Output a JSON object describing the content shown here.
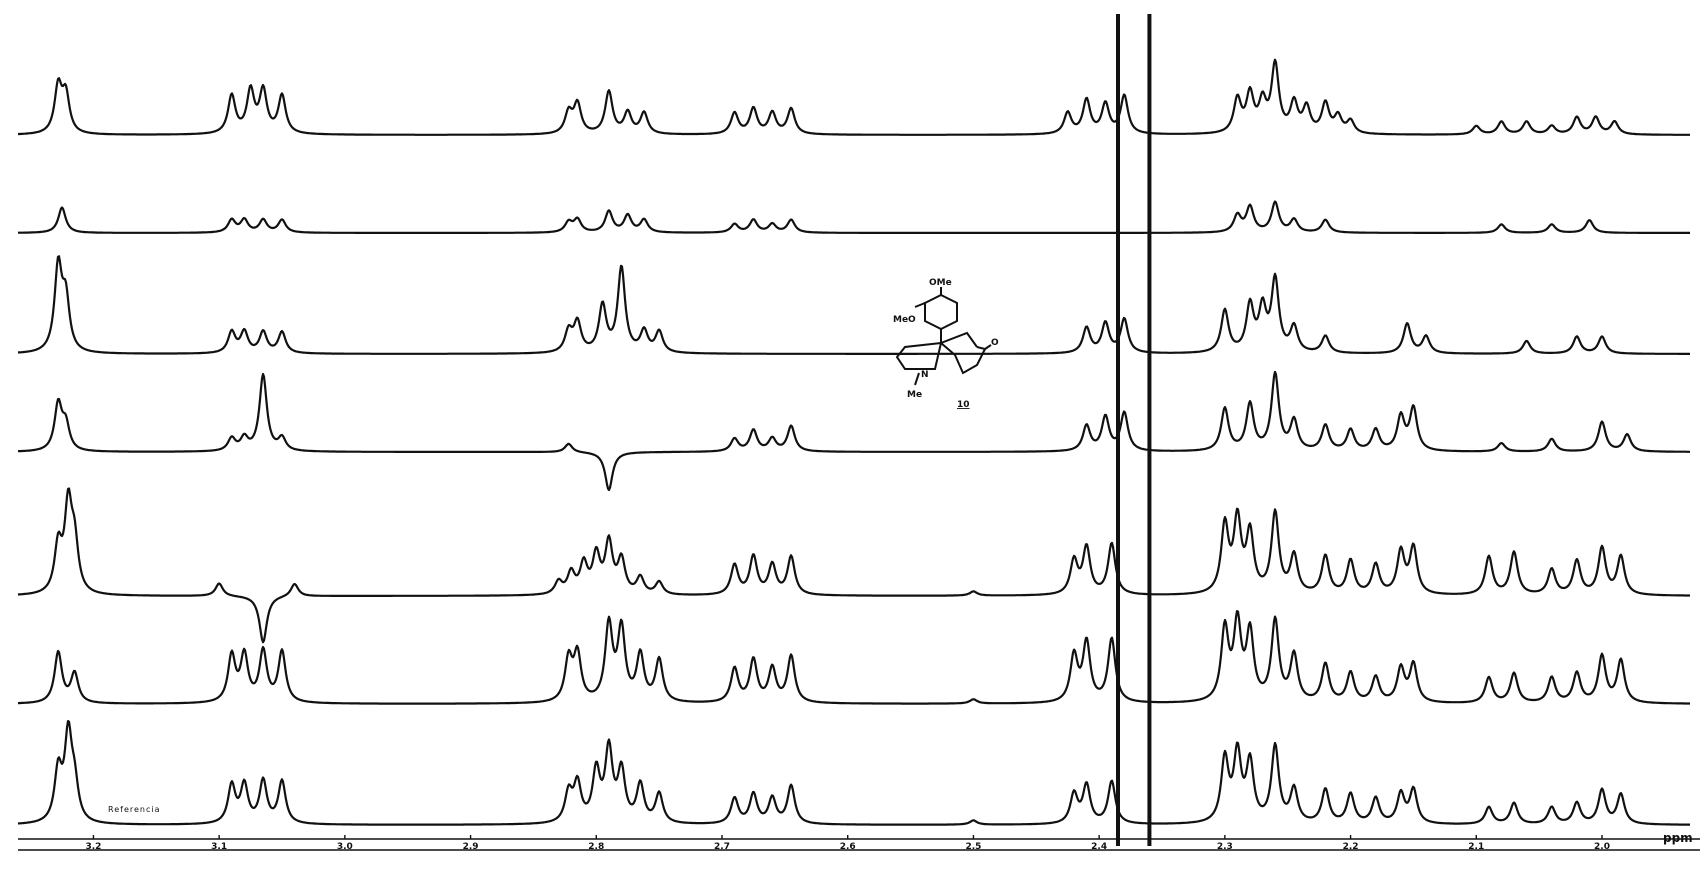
{
  "chart_data": {
    "type": "line",
    "title": "",
    "xlabel": "ppm",
    "ylabel": "",
    "x_reversed": true,
    "xlim": [
      3.26,
      1.93
    ],
    "x_ticks": [
      {
        "v": 3.2,
        "label": "3.2"
      },
      {
        "v": 3.1,
        "label": "3.1"
      },
      {
        "v": 3.0,
        "label": "3.0"
      },
      {
        "v": 2.9,
        "label": "2.9"
      },
      {
        "v": 2.8,
        "label": "2.8"
      },
      {
        "v": 2.7,
        "label": "2.7"
      },
      {
        "v": 2.6,
        "label": "2.6"
      },
      {
        "v": 2.5,
        "label": "2.5"
      },
      {
        "v": 2.4,
        "label": "2.4"
      },
      {
        "v": 2.3,
        "label": "2.3"
      },
      {
        "v": 2.2,
        "label": "2.2"
      },
      {
        "v": 2.1,
        "label": "2.1"
      },
      {
        "v": 2.0,
        "label": "2.0"
      }
    ],
    "annotations": [
      {
        "text": "Referencia",
        "ppm": 3.17,
        "trace": 7
      }
    ],
    "strong_singlets_ppm": [
      2.385,
      2.36
    ],
    "traces": [
      {
        "index": 1,
        "peaks": [
          [
            3.228,
            0.55
          ],
          [
            3.222,
            0.45
          ],
          [
            3.09,
            0.45
          ],
          [
            3.075,
            0.5
          ],
          [
            3.065,
            0.5
          ],
          [
            3.05,
            0.45
          ],
          [
            2.822,
            0.25
          ],
          [
            2.815,
            0.35
          ],
          [
            2.79,
            0.5
          ],
          [
            2.775,
            0.25
          ],
          [
            2.762,
            0.25
          ],
          [
            2.69,
            0.25
          ],
          [
            2.675,
            0.3
          ],
          [
            2.66,
            0.25
          ],
          [
            2.645,
            0.3
          ],
          [
            2.425,
            0.25
          ],
          [
            2.41,
            0.4
          ],
          [
            2.395,
            0.35
          ],
          [
            2.38,
            0.45
          ],
          [
            2.29,
            0.4
          ],
          [
            2.28,
            0.45
          ],
          [
            2.27,
            0.35
          ],
          [
            2.26,
            0.8
          ],
          [
            2.245,
            0.35
          ],
          [
            2.235,
            0.3
          ],
          [
            2.22,
            0.35
          ],
          [
            2.21,
            0.2
          ],
          [
            2.2,
            0.15
          ],
          [
            2.1,
            0.1
          ],
          [
            2.08,
            0.15
          ],
          [
            2.06,
            0.15
          ],
          [
            2.04,
            0.1
          ],
          [
            2.02,
            0.2
          ],
          [
            2.005,
            0.2
          ],
          [
            1.99,
            0.15
          ]
        ]
      },
      {
        "index": 2,
        "peaks": [
          [
            3.225,
            0.3
          ],
          [
            3.09,
            0.15
          ],
          [
            3.08,
            0.15
          ],
          [
            3.065,
            0.15
          ],
          [
            3.05,
            0.15
          ],
          [
            2.822,
            0.12
          ],
          [
            2.815,
            0.15
          ],
          [
            2.79,
            0.25
          ],
          [
            2.775,
            0.2
          ],
          [
            2.762,
            0.15
          ],
          [
            2.69,
            0.1
          ],
          [
            2.675,
            0.15
          ],
          [
            2.66,
            0.1
          ],
          [
            2.645,
            0.15
          ],
          [
            2.29,
            0.2
          ],
          [
            2.28,
            0.3
          ],
          [
            2.26,
            0.35
          ],
          [
            2.245,
            0.15
          ],
          [
            2.22,
            0.15
          ],
          [
            2.08,
            0.1
          ],
          [
            2.04,
            0.1
          ],
          [
            2.01,
            0.15
          ]
        ]
      },
      {
        "index": 3,
        "peaks": [
          [
            3.228,
            1.0
          ],
          [
            3.222,
            0.6
          ],
          [
            3.09,
            0.25
          ],
          [
            3.08,
            0.25
          ],
          [
            3.065,
            0.25
          ],
          [
            3.05,
            0.25
          ],
          [
            2.822,
            0.25
          ],
          [
            2.815,
            0.35
          ],
          [
            2.795,
            0.55
          ],
          [
            2.78,
            1.0
          ],
          [
            2.762,
            0.25
          ],
          [
            2.75,
            0.25
          ],
          [
            2.41,
            0.3
          ],
          [
            2.395,
            0.35
          ],
          [
            2.38,
            0.4
          ],
          [
            2.3,
            0.5
          ],
          [
            2.28,
            0.55
          ],
          [
            2.27,
            0.5
          ],
          [
            2.26,
            0.85
          ],
          [
            2.245,
            0.3
          ],
          [
            2.22,
            0.2
          ],
          [
            2.155,
            0.35
          ],
          [
            2.14,
            0.2
          ],
          [
            2.06,
            0.15
          ],
          [
            2.02,
            0.2
          ],
          [
            2.0,
            0.2
          ]
        ]
      },
      {
        "index": 4,
        "peaks": [
          [
            3.228,
            0.55
          ],
          [
            3.222,
            0.3
          ],
          [
            3.09,
            0.15
          ],
          [
            3.08,
            0.15
          ],
          [
            3.065,
            0.9
          ],
          [
            3.05,
            0.15
          ],
          [
            2.822,
            0.1
          ],
          [
            2.79,
            -0.45
          ],
          [
            2.69,
            0.15
          ],
          [
            2.675,
            0.25
          ],
          [
            2.66,
            0.15
          ],
          [
            2.645,
            0.3
          ],
          [
            2.41,
            0.3
          ],
          [
            2.395,
            0.4
          ],
          [
            2.38,
            0.45
          ],
          [
            2.3,
            0.5
          ],
          [
            2.28,
            0.55
          ],
          [
            2.26,
            0.9
          ],
          [
            2.245,
            0.35
          ],
          [
            2.22,
            0.3
          ],
          [
            2.2,
            0.25
          ],
          [
            2.18,
            0.25
          ],
          [
            2.16,
            0.4
          ],
          [
            2.15,
            0.5
          ],
          [
            2.08,
            0.1
          ],
          [
            2.04,
            0.15
          ],
          [
            2.0,
            0.35
          ],
          [
            1.98,
            0.2
          ]
        ]
      },
      {
        "index": 5,
        "peaks": [
          [
            3.228,
            0.55
          ],
          [
            3.22,
            1.0
          ],
          [
            3.215,
            0.55
          ],
          [
            3.1,
            0.15
          ],
          [
            3.065,
            -0.55
          ],
          [
            3.04,
            0.15
          ],
          [
            2.83,
            0.15
          ],
          [
            2.82,
            0.25
          ],
          [
            2.81,
            0.35
          ],
          [
            2.8,
            0.45
          ],
          [
            2.79,
            0.6
          ],
          [
            2.78,
            0.4
          ],
          [
            2.765,
            0.2
          ],
          [
            2.75,
            0.15
          ],
          [
            2.69,
            0.35
          ],
          [
            2.675,
            0.45
          ],
          [
            2.66,
            0.35
          ],
          [
            2.645,
            0.45
          ],
          [
            2.5,
            0.05
          ],
          [
            2.42,
            0.4
          ],
          [
            2.41,
            0.55
          ],
          [
            2.39,
            0.6
          ],
          [
            2.3,
            0.8
          ],
          [
            2.29,
            0.85
          ],
          [
            2.28,
            0.7
          ],
          [
            2.26,
            0.95
          ],
          [
            2.245,
            0.45
          ],
          [
            2.22,
            0.45
          ],
          [
            2.2,
            0.4
          ],
          [
            2.18,
            0.35
          ],
          [
            2.16,
            0.5
          ],
          [
            2.15,
            0.55
          ],
          [
            2.09,
            0.45
          ],
          [
            2.07,
            0.5
          ],
          [
            2.04,
            0.3
          ],
          [
            2.02,
            0.4
          ],
          [
            2.0,
            0.55
          ],
          [
            1.985,
            0.45
          ]
        ]
      },
      {
        "index": 6,
        "peaks": [
          [
            3.228,
            0.6
          ],
          [
            3.215,
            0.35
          ],
          [
            3.09,
            0.55
          ],
          [
            3.08,
            0.55
          ],
          [
            3.065,
            0.6
          ],
          [
            3.05,
            0.6
          ],
          [
            2.822,
            0.5
          ],
          [
            2.815,
            0.55
          ],
          [
            2.79,
            0.9
          ],
          [
            2.78,
            0.85
          ],
          [
            2.765,
            0.55
          ],
          [
            2.75,
            0.5
          ],
          [
            2.69,
            0.4
          ],
          [
            2.675,
            0.5
          ],
          [
            2.66,
            0.4
          ],
          [
            2.645,
            0.55
          ],
          [
            2.5,
            0.05
          ],
          [
            2.42,
            0.55
          ],
          [
            2.41,
            0.7
          ],
          [
            2.39,
            0.75
          ],
          [
            2.3,
            0.85
          ],
          [
            2.29,
            0.9
          ],
          [
            2.28,
            0.8
          ],
          [
            2.26,
            0.95
          ],
          [
            2.245,
            0.55
          ],
          [
            2.22,
            0.45
          ],
          [
            2.2,
            0.35
          ],
          [
            2.18,
            0.3
          ],
          [
            2.16,
            0.4
          ],
          [
            2.15,
            0.45
          ],
          [
            2.09,
            0.3
          ],
          [
            2.07,
            0.35
          ],
          [
            2.04,
            0.3
          ],
          [
            2.02,
            0.35
          ],
          [
            2.0,
            0.55
          ],
          [
            1.985,
            0.5
          ]
        ]
      },
      {
        "index": 7,
        "peaks": [
          [
            3.228,
            0.6
          ],
          [
            3.22,
            1.0
          ],
          [
            3.215,
            0.4
          ],
          [
            3.09,
            0.45
          ],
          [
            3.08,
            0.45
          ],
          [
            3.065,
            0.5
          ],
          [
            3.05,
            0.5
          ],
          [
            2.822,
            0.35
          ],
          [
            2.815,
            0.45
          ],
          [
            2.8,
            0.6
          ],
          [
            2.79,
            0.85
          ],
          [
            2.78,
            0.6
          ],
          [
            2.765,
            0.45
          ],
          [
            2.75,
            0.35
          ],
          [
            2.69,
            0.3
          ],
          [
            2.675,
            0.35
          ],
          [
            2.66,
            0.3
          ],
          [
            2.645,
            0.45
          ],
          [
            2.5,
            0.05
          ],
          [
            2.42,
            0.35
          ],
          [
            2.41,
            0.45
          ],
          [
            2.39,
            0.5
          ],
          [
            2.3,
            0.75
          ],
          [
            2.29,
            0.8
          ],
          [
            2.28,
            0.7
          ],
          [
            2.26,
            0.9
          ],
          [
            2.245,
            0.4
          ],
          [
            2.22,
            0.4
          ],
          [
            2.2,
            0.35
          ],
          [
            2.18,
            0.3
          ],
          [
            2.16,
            0.35
          ],
          [
            2.15,
            0.4
          ],
          [
            2.09,
            0.2
          ],
          [
            2.07,
            0.25
          ],
          [
            2.04,
            0.2
          ],
          [
            2.02,
            0.25
          ],
          [
            2.0,
            0.4
          ],
          [
            1.985,
            0.35
          ]
        ]
      }
    ]
  },
  "structure": {
    "labels": {
      "ome_top": "OMe",
      "meo_left": "MeO",
      "n_atom": "N",
      "me_bottom": "Me",
      "carbonyl_o": "O",
      "compound_number": "10"
    }
  }
}
